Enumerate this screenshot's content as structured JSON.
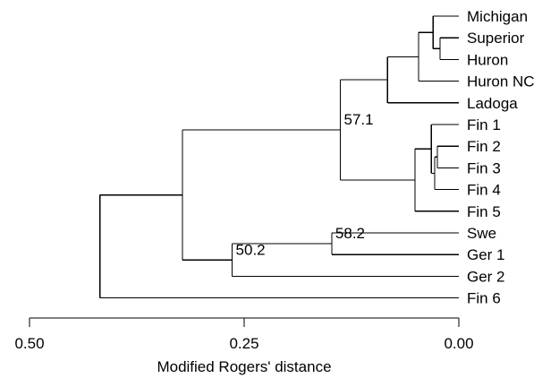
{
  "leaves": [
    "Michigan",
    "Superior",
    "Huron",
    "Huron NC",
    "Ladoga",
    "Fin 1",
    "Fin 2",
    "Fin 3",
    "Fin 4",
    "Fin 5",
    "Swe",
    "Ger 1",
    "Ger 2",
    "Fin 6"
  ],
  "bootstrap": [
    {
      "node": "finnish-north-american",
      "value": "57.1"
    },
    {
      "node": "swe-ger1",
      "value": "58.2"
    },
    {
      "node": "central-europe",
      "value": "50.2"
    }
  ],
  "axis": {
    "label": "Modified Rogers' distance",
    "domain": [
      0.5,
      0.0
    ],
    "ticks": [
      "0.50",
      "0.25",
      "0.00"
    ]
  },
  "tree": {
    "name": "root",
    "h": 0.418,
    "children": [
      {
        "name": "cluster-a",
        "h": 0.322,
        "children": [
          {
            "name": "finnish-north-american",
            "h": 0.138,
            "children": [
              {
                "name": "north-american-ladoga",
                "h": 0.083,
                "children": [
                  {
                    "name": "north-american",
                    "h": 0.047,
                    "children": [
                      {
                        "name": "great-lakes",
                        "h": 0.03,
                        "children": [
                          {
                            "leaf": "Michigan"
                          },
                          {
                            "name": "superior-huron",
                            "h": 0.022,
                            "children": [
                              {
                                "leaf": "Superior"
                              },
                              {
                                "leaf": "Huron"
                              }
                            ]
                          }
                        ]
                      },
                      {
                        "leaf": "Huron NC"
                      }
                    ]
                  },
                  {
                    "leaf": "Ladoga"
                  }
                ]
              },
              {
                "name": "finnish",
                "h": 0.051,
                "children": [
                  {
                    "name": "fin1-4",
                    "h": 0.032,
                    "children": [
                      {
                        "leaf": "Fin 1"
                      },
                      {
                        "name": "fin2-4",
                        "h": 0.028,
                        "children": [
                          {
                            "name": "fin2-3",
                            "h": 0.025,
                            "children": [
                              {
                                "leaf": "Fin 2"
                              },
                              {
                                "leaf": "Fin 3"
                              }
                            ]
                          },
                          {
                            "leaf": "Fin 4"
                          }
                        ]
                      }
                    ]
                  },
                  {
                    "leaf": "Fin 5"
                  }
                ]
              }
            ]
          },
          {
            "name": "central-europe",
            "h": 0.264,
            "children": [
              {
                "name": "swe-ger1",
                "h": 0.148,
                "children": [
                  {
                    "leaf": "Swe"
                  },
                  {
                    "leaf": "Ger 1"
                  }
                ]
              },
              {
                "leaf": "Ger 2"
              }
            ]
          }
        ]
      },
      {
        "leaf": "Fin 6"
      }
    ]
  }
}
